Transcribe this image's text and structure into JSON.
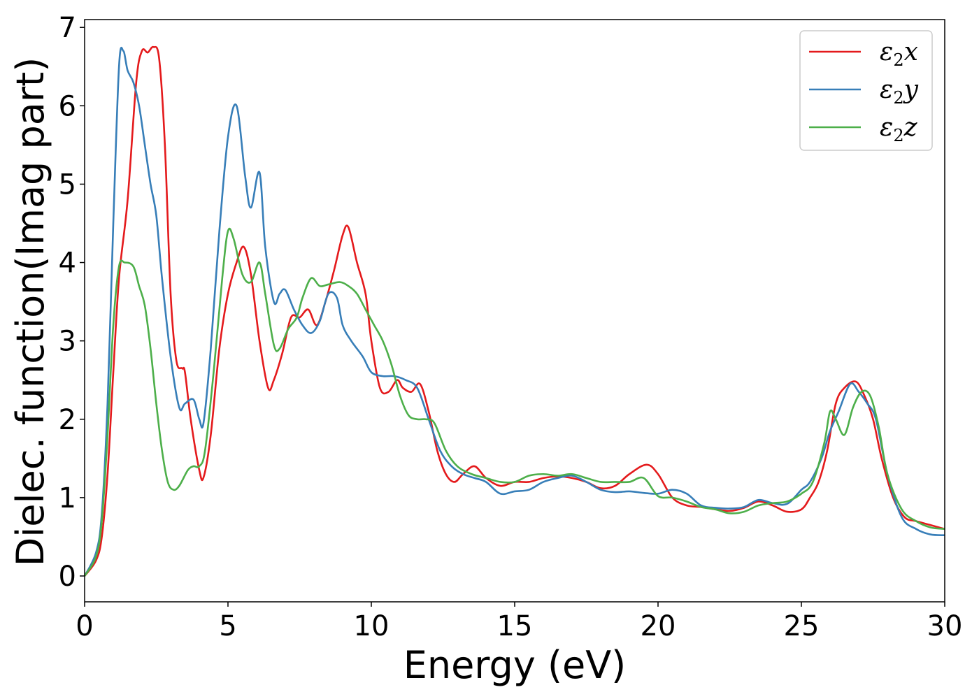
{
  "chart_data": {
    "type": "line",
    "xlabel": "Energy (eV)",
    "ylabel": "Dielec. function(Imag part)",
    "xlim": [
      0,
      30
    ],
    "ylim": [
      -0.33,
      7.1
    ],
    "xticks": [
      0,
      5,
      10,
      15,
      20,
      25,
      30
    ],
    "yticks": [
      0,
      1,
      2,
      3,
      4,
      5,
      6,
      7
    ],
    "grid": false,
    "legend_position": "top-right",
    "series": [
      {
        "name": "ε2x",
        "legend_base": "ε",
        "legend_sub": "2",
        "legend_suffix": "x",
        "color": "#e41a1c",
        "x": [
          0,
          0.4,
          0.6,
          0.8,
          1.0,
          1.2,
          1.5,
          1.8,
          2.0,
          2.2,
          2.4,
          2.6,
          2.8,
          3.0,
          3.2,
          3.4,
          3.5,
          3.7,
          4.0,
          4.15,
          4.4,
          4.7,
          5.0,
          5.3,
          5.55,
          5.8,
          6.1,
          6.4,
          6.6,
          6.9,
          7.2,
          7.5,
          7.8,
          8.1,
          8.4,
          8.7,
          9.0,
          9.2,
          9.5,
          9.8,
          10.0,
          10.3,
          10.6,
          10.9,
          11.1,
          11.4,
          11.7,
          12.0,
          12.3,
          12.6,
          12.9,
          13.2,
          13.6,
          14.0,
          14.5,
          15.0,
          15.5,
          16.0,
          16.5,
          17.0,
          17.5,
          18.0,
          18.5,
          19.0,
          19.6,
          20.0,
          20.5,
          21.0,
          21.5,
          22.0,
          22.5,
          23.0,
          23.5,
          24.0,
          24.5,
          25.0,
          25.3,
          25.6,
          25.9,
          26.2,
          26.5,
          26.9,
          27.2,
          27.5,
          27.8,
          28.2,
          28.6,
          29.0,
          29.5,
          30.0
        ],
        "y": [
          0,
          0.2,
          0.5,
          1.3,
          2.6,
          3.8,
          4.8,
          6.3,
          6.7,
          6.68,
          6.75,
          6.6,
          5.5,
          3.6,
          2.75,
          2.65,
          2.6,
          2.0,
          1.35,
          1.26,
          1.8,
          2.9,
          3.6,
          4.0,
          4.2,
          3.85,
          3.0,
          2.4,
          2.5,
          2.85,
          3.3,
          3.3,
          3.4,
          3.2,
          3.5,
          3.9,
          4.35,
          4.45,
          4.0,
          3.6,
          3.0,
          2.4,
          2.35,
          2.5,
          2.4,
          2.35,
          2.45,
          2.1,
          1.6,
          1.3,
          1.2,
          1.3,
          1.4,
          1.25,
          1.15,
          1.2,
          1.2,
          1.25,
          1.27,
          1.25,
          1.2,
          1.12,
          1.15,
          1.3,
          1.42,
          1.3,
          1.0,
          0.9,
          0.88,
          0.85,
          0.83,
          0.87,
          0.95,
          0.9,
          0.82,
          0.85,
          1.0,
          1.2,
          1.6,
          2.2,
          2.4,
          2.48,
          2.3,
          2.0,
          1.5,
          1.0,
          0.75,
          0.7,
          0.65,
          0.6
        ]
      },
      {
        "name": "ε2y",
        "legend_base": "ε",
        "legend_sub": "2",
        "legend_suffix": "y",
        "color": "#377eb8",
        "x": [
          0,
          0.4,
          0.6,
          0.8,
          1.0,
          1.2,
          1.35,
          1.5,
          1.7,
          1.9,
          2.1,
          2.3,
          2.5,
          2.7,
          3.0,
          3.3,
          3.5,
          3.8,
          4.0,
          4.15,
          4.4,
          4.7,
          5.0,
          5.3,
          5.6,
          5.8,
          6.1,
          6.3,
          6.6,
          6.8,
          7.0,
          7.3,
          7.6,
          7.9,
          8.2,
          8.5,
          8.8,
          9.0,
          9.3,
          9.7,
          10.0,
          10.4,
          10.8,
          11.2,
          11.6,
          12.0,
          12.4,
          12.8,
          13.2,
          13.6,
          14.0,
          14.5,
          15.0,
          15.5,
          16.0,
          16.5,
          17.0,
          17.5,
          18.0,
          18.5,
          19.0,
          19.5,
          20.0,
          20.5,
          21.0,
          21.5,
          22.0,
          22.5,
          23.0,
          23.5,
          24.0,
          24.5,
          25.0,
          25.3,
          25.7,
          26.0,
          26.3,
          26.7,
          27.0,
          27.3,
          27.6,
          28.0,
          28.5,
          29.0,
          29.5,
          30.0
        ],
        "y": [
          0,
          0.3,
          0.8,
          2.2,
          4.5,
          6.5,
          6.7,
          6.45,
          6.3,
          6.0,
          5.5,
          5.0,
          4.6,
          3.8,
          2.8,
          2.15,
          2.2,
          2.25,
          2.0,
          1.96,
          2.9,
          4.4,
          5.6,
          6.0,
          5.1,
          4.7,
          5.15,
          4.2,
          3.5,
          3.6,
          3.65,
          3.4,
          3.2,
          3.1,
          3.25,
          3.6,
          3.55,
          3.2,
          3.0,
          2.8,
          2.6,
          2.55,
          2.55,
          2.5,
          2.4,
          2.0,
          1.6,
          1.4,
          1.3,
          1.25,
          1.2,
          1.05,
          1.08,
          1.1,
          1.2,
          1.25,
          1.28,
          1.2,
          1.1,
          1.07,
          1.08,
          1.06,
          1.05,
          1.1,
          1.05,
          0.9,
          0.87,
          0.86,
          0.88,
          0.97,
          0.93,
          0.92,
          1.1,
          1.2,
          1.5,
          1.85,
          2.1,
          2.45,
          2.35,
          2.2,
          2.0,
          1.3,
          0.75,
          0.6,
          0.53,
          0.52
        ]
      },
      {
        "name": "ε2z",
        "legend_base": "ε",
        "legend_sub": "2",
        "legend_suffix": "z",
        "color": "#4daf4a",
        "x": [
          0,
          0.4,
          0.6,
          0.8,
          1.0,
          1.2,
          1.4,
          1.7,
          1.9,
          2.1,
          2.3,
          2.5,
          2.7,
          2.9,
          3.1,
          3.3,
          3.6,
          3.8,
          4.0,
          4.2,
          4.5,
          4.8,
          5.0,
          5.2,
          5.5,
          5.8,
          6.1,
          6.3,
          6.6,
          6.8,
          7.1,
          7.4,
          7.6,
          7.9,
          8.2,
          8.5,
          8.9,
          9.2,
          9.5,
          9.8,
          10.1,
          10.4,
          10.7,
          11.0,
          11.3,
          11.6,
          11.9,
          12.2,
          12.6,
          13.0,
          13.5,
          14.0,
          14.5,
          15.0,
          15.5,
          16.0,
          16.5,
          17.0,
          17.5,
          18.0,
          18.5,
          19.0,
          19.5,
          20.0,
          20.5,
          21.0,
          21.5,
          22.0,
          22.5,
          23.0,
          23.5,
          24.0,
          24.5,
          25.0,
          25.4,
          25.8,
          26.0,
          26.2,
          26.5,
          26.8,
          27.1,
          27.4,
          27.7,
          28.0,
          28.5,
          29.0,
          29.5,
          30.0
        ],
        "y": [
          0,
          0.25,
          0.7,
          1.8,
          3.2,
          3.95,
          4.0,
          3.95,
          3.7,
          3.45,
          2.9,
          2.2,
          1.6,
          1.2,
          1.1,
          1.15,
          1.35,
          1.4,
          1.4,
          1.6,
          2.6,
          3.8,
          4.4,
          4.3,
          3.85,
          3.75,
          4.0,
          3.6,
          2.95,
          2.9,
          3.15,
          3.3,
          3.55,
          3.8,
          3.7,
          3.72,
          3.75,
          3.7,
          3.6,
          3.4,
          3.2,
          3.0,
          2.7,
          2.3,
          2.05,
          2.0,
          2.0,
          1.95,
          1.6,
          1.4,
          1.3,
          1.25,
          1.2,
          1.2,
          1.28,
          1.3,
          1.28,
          1.3,
          1.25,
          1.2,
          1.2,
          1.2,
          1.25,
          1.02,
          1.0,
          0.95,
          0.88,
          0.85,
          0.8,
          0.82,
          0.9,
          0.93,
          0.95,
          1.05,
          1.2,
          1.7,
          2.1,
          2.0,
          1.8,
          2.15,
          2.35,
          2.3,
          1.9,
          1.3,
          0.85,
          0.7,
          0.62,
          0.6
        ]
      }
    ]
  }
}
